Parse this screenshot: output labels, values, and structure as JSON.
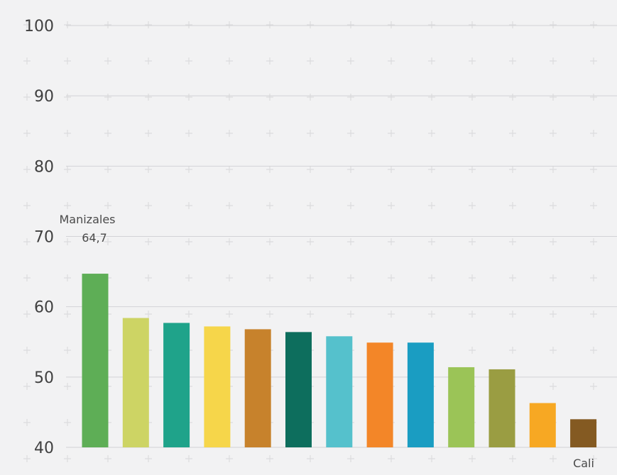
{
  "chart_data": {
    "type": "bar",
    "categories": [
      "Manizales",
      "",
      "",
      "",
      "",
      "",
      "",
      "",
      "",
      "",
      "",
      "",
      "Cali"
    ],
    "values": [
      64.7,
      58.4,
      57.7,
      57.2,
      56.8,
      56.4,
      55.8,
      54.9,
      54.9,
      51.4,
      51.1,
      46.3,
      44.0
    ],
    "colors": [
      "#5eae56",
      "#cdd464",
      "#1fa38a",
      "#f6d64a",
      "#c7822c",
      "#0d6e5d",
      "#55c1cc",
      "#f38628",
      "#1a9dc2",
      "#9bc457",
      "#9a9d42",
      "#f7a823",
      "#845a22"
    ],
    "ylim": [
      40,
      100
    ],
    "yticks": [
      40,
      50,
      60,
      70,
      80,
      90,
      100
    ],
    "grid": true,
    "annotations": {
      "top_name": "Manizales",
      "top_value": "64,7",
      "bottom_name": "Cali"
    }
  }
}
